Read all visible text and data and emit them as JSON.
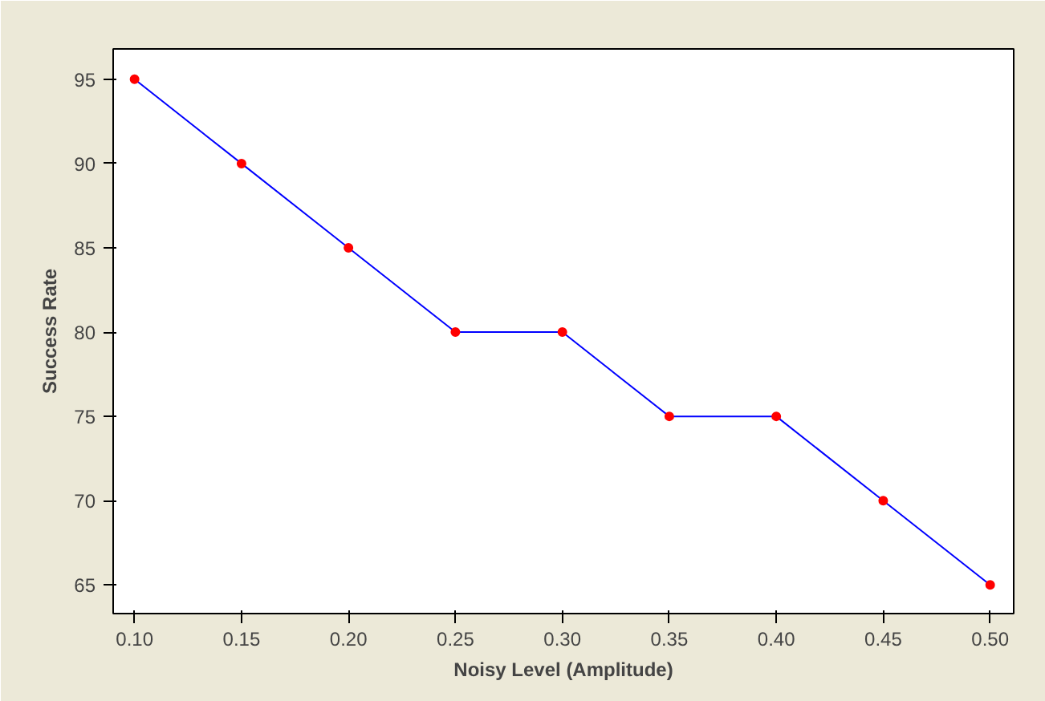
{
  "chart_data": {
    "type": "line",
    "xlabel": "Noisy Level (Amplitude)",
    "ylabel": "Success Rate",
    "x": [
      0.1,
      0.15,
      0.2,
      0.25,
      0.3,
      0.35,
      0.4,
      0.45,
      0.5
    ],
    "series": [
      {
        "color": "#0000ff",
        "colors": [
          "#ff0000",
          "#ff0000",
          "#ff0000",
          "#ff0000",
          "#ff0000",
          "#ff0000",
          "#ff0000",
          "#ff0000",
          "#ff0000"
        ],
        "values": [
          95,
          90,
          85,
          80,
          80,
          75,
          75,
          70,
          65
        ]
      }
    ],
    "marker": "circle",
    "line_style": "solid",
    "grid": false,
    "xlim": [
      0.09,
      0.511
    ],
    "ylim": [
      63.3,
      96.8
    ],
    "xticks": [
      {
        "value": 0.1,
        "label": "0.10"
      },
      {
        "value": 0.15,
        "label": "0.15"
      },
      {
        "value": 0.2,
        "label": "0.20"
      },
      {
        "value": 0.25,
        "label": "0.25"
      },
      {
        "value": 0.3,
        "label": "0.30"
      },
      {
        "value": 0.35,
        "label": "0.35"
      },
      {
        "value": 0.4,
        "label": "0.40"
      },
      {
        "value": 0.45,
        "label": "0.45"
      },
      {
        "value": 0.5,
        "label": "0.50"
      }
    ],
    "yticks": [
      65,
      70,
      75,
      80,
      85,
      90,
      95
    ]
  }
}
